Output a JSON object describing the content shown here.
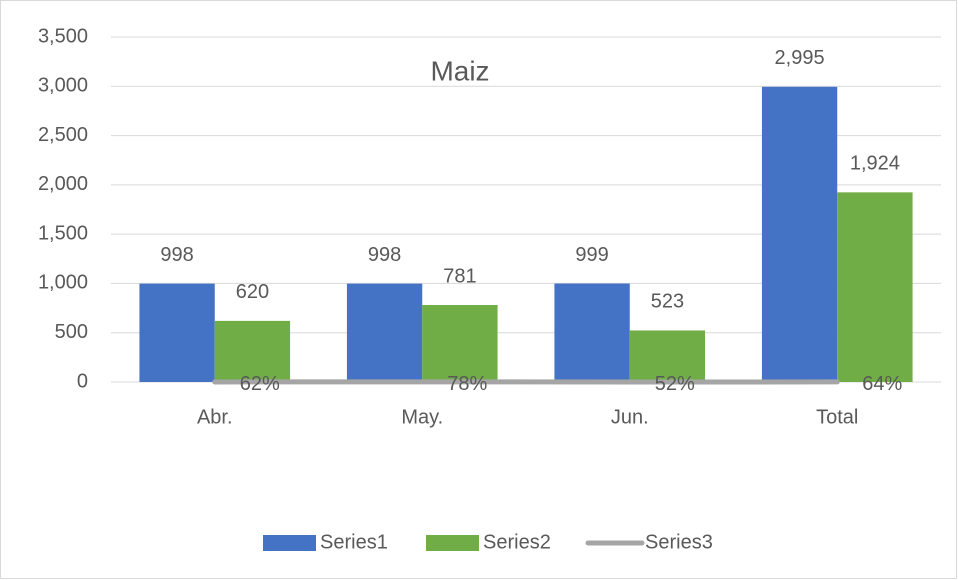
{
  "chart_data": {
    "type": "bar",
    "title": "Maiz",
    "categories": [
      "Abr.",
      "May.",
      "Jun.",
      "Total"
    ],
    "series": [
      {
        "name": "Series1",
        "color": "#4472c4",
        "type": "bar",
        "values": [
          998,
          998,
          999,
          2995
        ],
        "value_labels": [
          "998",
          "998",
          "999",
          "2,995"
        ]
      },
      {
        "name": "Series2",
        "color": "#70ad47",
        "type": "bar",
        "values": [
          620,
          781,
          523,
          1924
        ],
        "value_labels": [
          "620",
          "781",
          "523",
          "1,924"
        ]
      },
      {
        "name": "Series3",
        "color": "#a5a5a5",
        "type": "line",
        "values": [
          0.62,
          0.78,
          0.52,
          0.64
        ],
        "value_labels": [
          "62%",
          "78%",
          "52%",
          "64%"
        ]
      }
    ],
    "ylim": [
      0,
      3500
    ],
    "yticks": [
      0,
      500,
      {
        "value": 1000,
        "label": "1,000"
      },
      {
        "value": 1500,
        "label": "1,500"
      },
      {
        "value": 2000,
        "label": "2,000"
      },
      {
        "value": 2500,
        "label": "2,500"
      },
      {
        "value": 3000,
        "label": "3,000"
      },
      {
        "value": 3500,
        "label": "3,500"
      }
    ],
    "grid": true,
    "legend": "bottom"
  }
}
